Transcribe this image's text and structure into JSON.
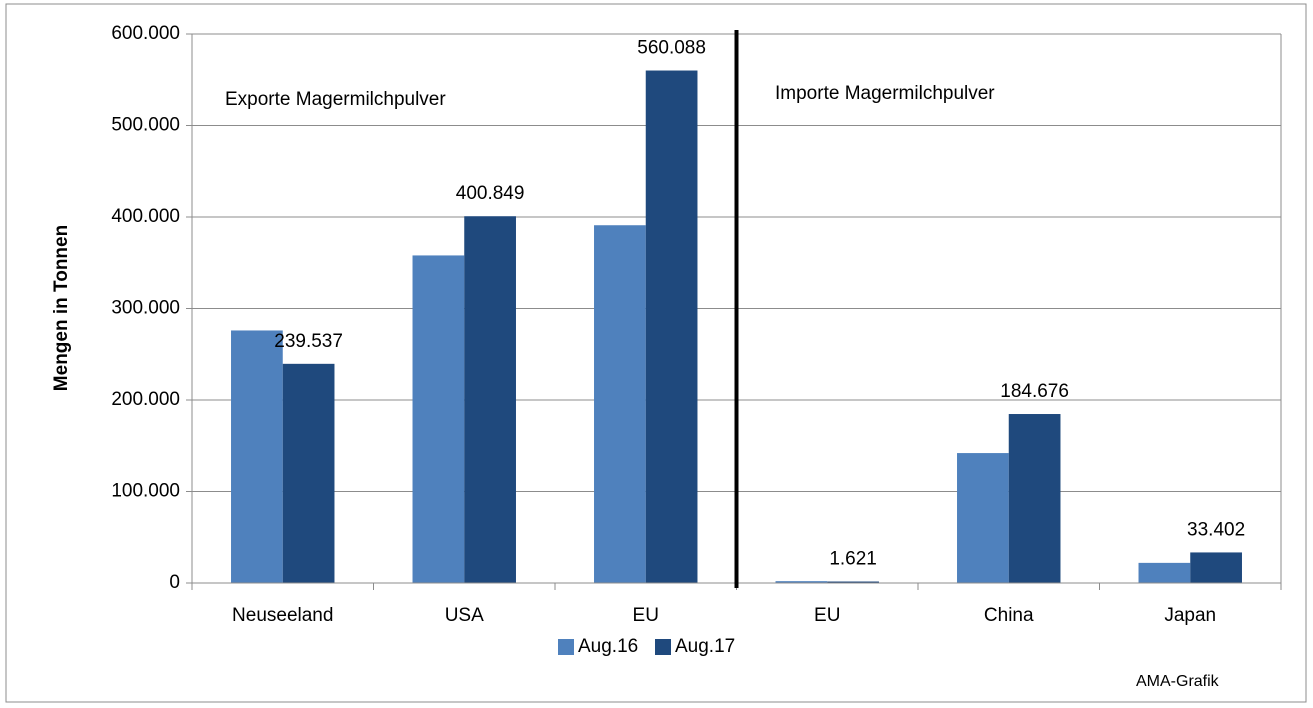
{
  "chart_data": {
    "type": "bar",
    "y_label": "Mengen in Tonnen",
    "annotations": [
      "Exporte Magermilchpulver",
      "Importe Magermilchpulver",
      "AMA-Grafik"
    ],
    "categories": [
      "Neuseeland",
      "USA",
      "EU",
      "EU",
      "China",
      "Japan"
    ],
    "series": [
      {
        "name": "Aug.16",
        "color": "#4f81bd",
        "values": [
          276000,
          358000,
          391000,
          2000,
          142000,
          22000
        ]
      },
      {
        "name": "Aug.17",
        "color": "#1f497d",
        "values": [
          239537,
          400849,
          560088,
          1621,
          184676,
          33402
        ],
        "value_labels": [
          "239.537",
          "400.849",
          "560.088",
          "1.621",
          "184.676",
          "33.402"
        ]
      }
    ],
    "ylim": [
      0,
      600000
    ],
    "yticks": [
      0,
      {
        "value": 100000,
        "label": "100.000"
      },
      {
        "value": 200000,
        "label": "200.000"
      },
      {
        "value": 300000,
        "label": "300.000"
      },
      {
        "value": 400000,
        "label": "400.000"
      },
      {
        "value": 500000,
        "label": "500.000"
      },
      {
        "value": 600000,
        "label": "600.000"
      }
    ],
    "grid": true,
    "legend": "bottom"
  }
}
